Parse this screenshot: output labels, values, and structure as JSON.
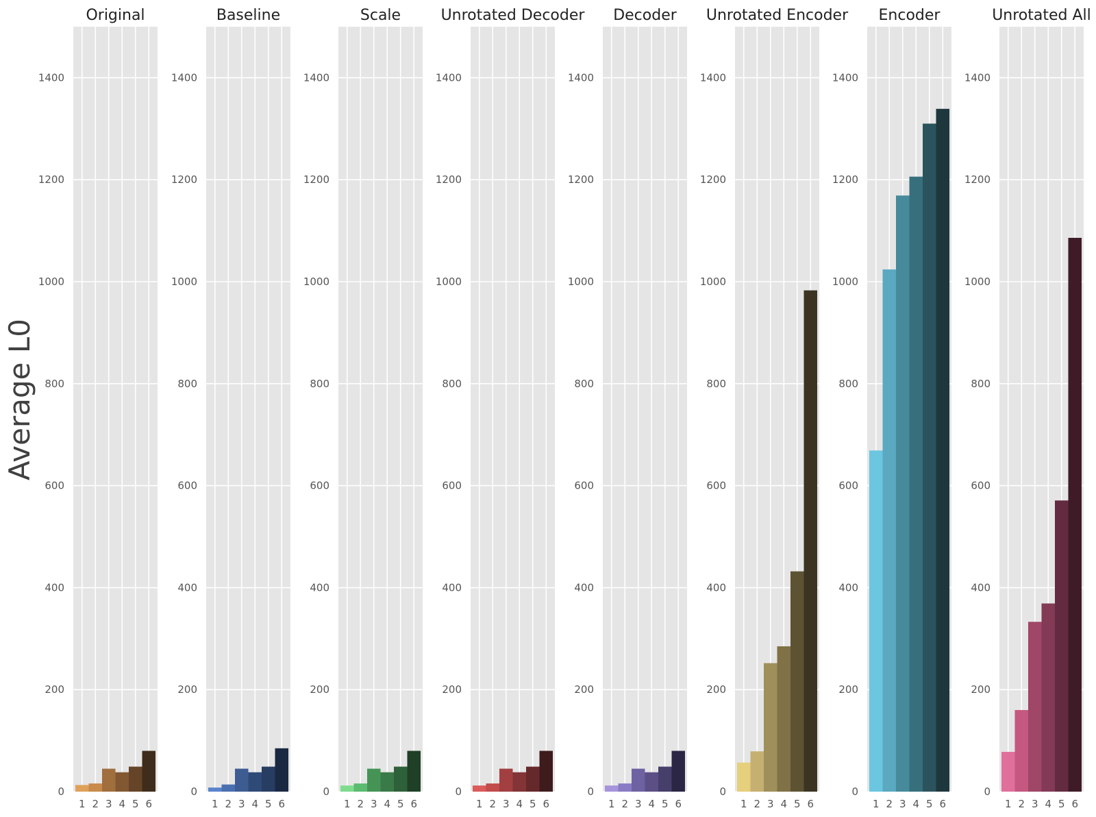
{
  "figure": {
    "ylabel": "Average L0"
  },
  "chart_data": [
    {
      "type": "bar",
      "title": "Original",
      "categories": [
        "1",
        "2",
        "3",
        "4",
        "5",
        "6"
      ],
      "values": [
        13,
        16,
        45,
        38,
        49,
        80
      ],
      "ylim": [
        0,
        1500
      ],
      "yticks": [
        0,
        200,
        400,
        600,
        800,
        1000,
        1200,
        1400
      ],
      "colors": [
        "#dfa15a",
        "#c88b4c",
        "#a16e3e",
        "#825832",
        "#654428",
        "#402c1a"
      ],
      "grid": true
    },
    {
      "type": "bar",
      "title": "Baseline",
      "categories": [
        "1",
        "2",
        "3",
        "4",
        "5",
        "6"
      ],
      "values": [
        8,
        14,
        45,
        38,
        49,
        85
      ],
      "ylim": [
        0,
        1500
      ],
      "yticks": [
        0,
        200,
        400,
        600,
        800,
        1000,
        1200,
        1400
      ],
      "colors": [
        "#5a84cc",
        "#4a6fb0",
        "#3d5c92",
        "#304a78",
        "#283d62",
        "#1a2842"
      ],
      "grid": true
    },
    {
      "type": "bar",
      "title": "Scale",
      "categories": [
        "1",
        "2",
        "3",
        "4",
        "5",
        "6"
      ],
      "values": [
        12,
        16,
        45,
        38,
        49,
        80
      ],
      "ylim": [
        0,
        1500
      ],
      "yticks": [
        0,
        200,
        400,
        600,
        800,
        1000,
        1200,
        1400
      ],
      "colors": [
        "#7edc8d",
        "#5bbb70",
        "#459456",
        "#3a7a48",
        "#2e6139",
        "#1f3f26"
      ],
      "grid": true
    },
    {
      "type": "bar",
      "title": "Unrotated Decoder",
      "categories": [
        "1",
        "2",
        "3",
        "4",
        "5",
        "6"
      ],
      "values": [
        12,
        16,
        45,
        38,
        49,
        80
      ],
      "ylim": [
        0,
        1500
      ],
      "yticks": [
        0,
        200,
        400,
        600,
        800,
        1000,
        1200,
        1400
      ],
      "colors": [
        "#db5a5a",
        "#c24b4b",
        "#a23f40",
        "#823436",
        "#66292b",
        "#3e1b1c"
      ],
      "grid": true
    },
    {
      "type": "bar",
      "title": "Decoder",
      "categories": [
        "1",
        "2",
        "3",
        "4",
        "5",
        "6"
      ],
      "values": [
        12,
        16,
        45,
        38,
        49,
        80
      ],
      "ylim": [
        0,
        1500
      ],
      "yticks": [
        0,
        200,
        400,
        600,
        800,
        1000,
        1200,
        1400
      ],
      "colors": [
        "#a594dc",
        "#8a7bc5",
        "#6e62a2",
        "#5b4f86",
        "#463e6b",
        "#2b2644"
      ],
      "grid": true
    },
    {
      "type": "bar",
      "title": "Unrotated Encoder",
      "categories": [
        "1",
        "2",
        "3",
        "4",
        "5",
        "6"
      ],
      "values": [
        57,
        79,
        252,
        285,
        432,
        983
      ],
      "ylim": [
        0,
        1500
      ],
      "yticks": [
        0,
        200,
        400,
        600,
        800,
        1000,
        1200,
        1400
      ],
      "colors": [
        "#e6cf7d",
        "#c6b071",
        "#9f8f5a",
        "#807246",
        "#5d5333",
        "#3c3322"
      ],
      "grid": true
    },
    {
      "type": "bar",
      "title": "Encoder",
      "categories": [
        "1",
        "2",
        "3",
        "4",
        "5",
        "6"
      ],
      "values": [
        669,
        1024,
        1169,
        1206,
        1310,
        1339
      ],
      "ylim": [
        0,
        1500
      ],
      "yticks": [
        0,
        200,
        400,
        600,
        800,
        1000,
        1200,
        1400
      ],
      "colors": [
        "#6bc6e0",
        "#5aa9c0",
        "#468a9b",
        "#376f7d",
        "#2b535d",
        "#1e373d"
      ],
      "grid": true
    },
    {
      "type": "bar",
      "title": "Unrotated All",
      "categories": [
        "1",
        "2",
        "3",
        "4",
        "5",
        "6"
      ],
      "values": [
        78,
        160,
        333,
        369,
        571,
        1086
      ],
      "ylim": [
        0,
        1500
      ],
      "yticks": [
        0,
        200,
        400,
        600,
        800,
        1000,
        1200,
        1400
      ],
      "colors": [
        "#e0709b",
        "#c45880",
        "#a04667",
        "#823a55",
        "#632b40",
        "#3e1b27"
      ],
      "grid": true
    }
  ]
}
